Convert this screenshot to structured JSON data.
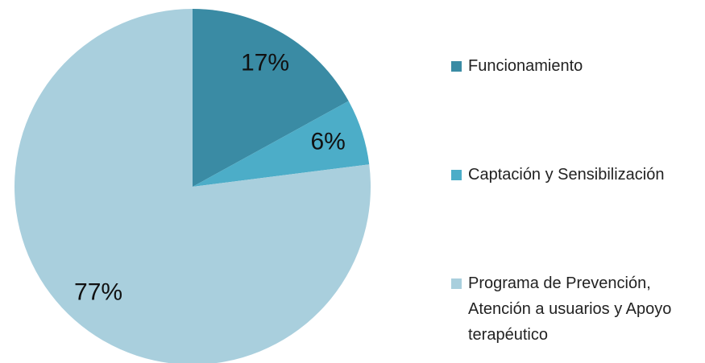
{
  "chart_data": {
    "type": "pie",
    "categories": [
      "Funcionamiento",
      "Captación y Sensibilización",
      "Programa de Prevención, Atención a usuarios y Apoyo terapéutico"
    ],
    "values": [
      17,
      6,
      77
    ],
    "value_labels": [
      "17%",
      "6%",
      "77%"
    ],
    "colors": [
      "#3a8ba4",
      "#4cadc8",
      "#a9cfdd"
    ],
    "legend": "right"
  }
}
